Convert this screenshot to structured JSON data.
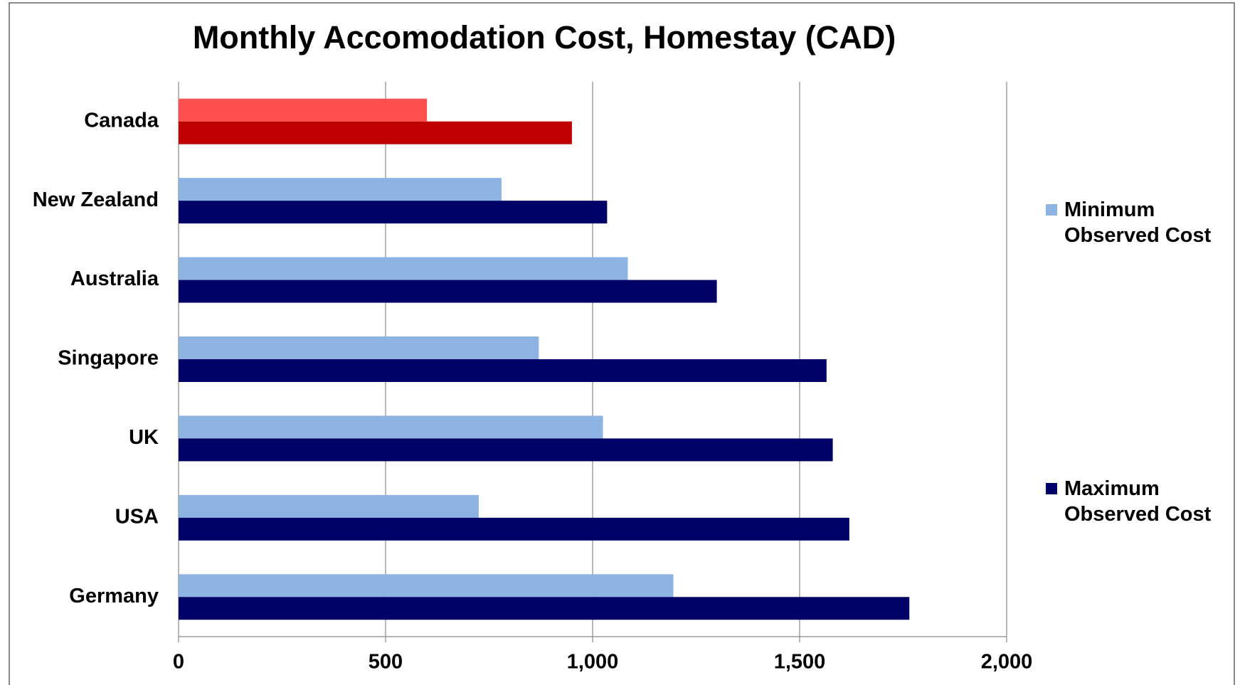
{
  "chart_data": {
    "type": "bar",
    "orientation": "horizontal",
    "title": "Monthly Accomodation Cost, Homestay (CAD)",
    "categories": [
      "Canada",
      "New Zealand",
      "Australia",
      "Singapore",
      "UK",
      "USA",
      "Germany"
    ],
    "series": [
      {
        "name": "Minimum Observed Cost",
        "color": "#8db3e2",
        "point_colors": [
          "#ff5050",
          null,
          null,
          null,
          null,
          null,
          null
        ],
        "values": [
          600,
          780,
          1085,
          870,
          1025,
          725,
          1195
        ]
      },
      {
        "name": "Maximum Observed Cost",
        "color": "#000066",
        "point_colors": [
          "#c00000",
          null,
          null,
          null,
          null,
          null,
          null
        ],
        "values": [
          950,
          1035,
          1300,
          1565,
          1580,
          1620,
          1765
        ]
      }
    ],
    "xlim": [
      0,
      2000
    ],
    "xticks": [
      0,
      500,
      {
        "value": 1000,
        "label": "1,000"
      },
      {
        "value": 1500,
        "label": "1,500"
      },
      {
        "value": 2000,
        "label": "2,000"
      }
    ],
    "grid": true,
    "legend": "right"
  }
}
